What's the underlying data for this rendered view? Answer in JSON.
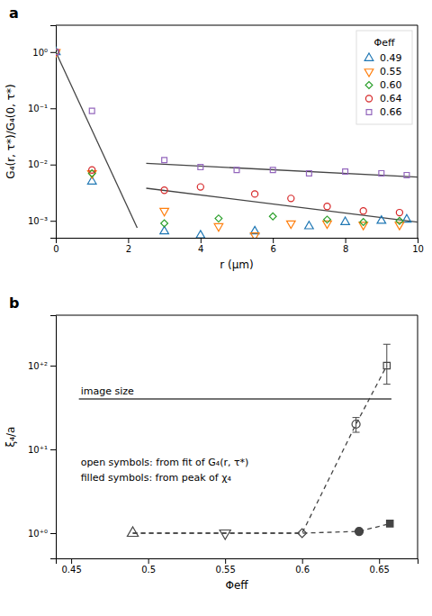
{
  "chart_data": [
    {
      "type": "scatter",
      "title": "a",
      "x_label": "r (μm)",
      "y_label": "G₄(r, τ*)/G₄(0, τ*)",
      "log": "y",
      "grid": false,
      "legend": "top-right",
      "legend_title": "Φeff",
      "xlim": [
        0,
        10
      ],
      "ylim": [
        0.0005,
        3.0
      ],
      "xticks": [
        0,
        2,
        4,
        6,
        8,
        10
      ],
      "yticks": [
        {
          "value": 0.001,
          "label": "10⁻³"
        },
        {
          "value": 0.01,
          "label": "10⁻²"
        },
        {
          "value": 0.1,
          "label": "10⁻¹"
        },
        {
          "value": 1,
          "label": "10⁰"
        }
      ],
      "series": [
        {
          "name": "0.49",
          "type": "scatter",
          "marker": "triangle-up-open",
          "x": [
            0.0,
            1.0,
            3.0,
            4.0,
            5.5,
            7.0,
            8.0,
            9.0,
            9.7
          ],
          "values": [
            1.0,
            0.005,
            0.00065,
            0.00055,
            0.00065,
            0.0008,
            0.00095,
            0.001,
            0.00105
          ]
        },
        {
          "name": "0.55",
          "type": "scatter",
          "marker": "triangle-down-open",
          "x": [
            0.0,
            1.0,
            3.0,
            4.5,
            5.5,
            6.5,
            7.5,
            8.5,
            9.5
          ],
          "values": [
            1.0,
            0.007,
            0.0015,
            0.0008,
            0.00055,
            0.0009,
            0.0009,
            0.00085,
            0.00085
          ]
        },
        {
          "name": "0.60",
          "type": "scatter",
          "marker": "diamond-open",
          "x": [
            0.0,
            1.0,
            3.0,
            4.5,
            6.0,
            7.5,
            8.5,
            9.5
          ],
          "values": [
            1.0,
            0.007,
            0.0009,
            0.0011,
            0.0012,
            0.00105,
            0.00095,
            0.001
          ]
        },
        {
          "name": "0.64",
          "type": "scatter",
          "marker": "circle-open",
          "x": [
            0.0,
            1.0,
            3.0,
            4.0,
            5.5,
            6.5,
            7.5,
            8.5,
            9.5
          ],
          "values": [
            1.0,
            0.008,
            0.0035,
            0.004,
            0.003,
            0.0025,
            0.0018,
            0.0015,
            0.0014
          ]
        },
        {
          "name": "0.66",
          "type": "scatter",
          "marker": "square-open",
          "x": [
            0.0,
            1.0,
            3.0,
            4.0,
            5.0,
            6.0,
            7.0,
            8.0,
            9.0,
            9.7
          ],
          "values": [
            1.0,
            0.09,
            0.012,
            0.009,
            0.008,
            0.008,
            0.007,
            0.0075,
            0.007,
            0.0065
          ]
        },
        {
          "type": "line",
          "line_style": "solid",
          "x": [
            0.0,
            2.25
          ],
          "values": [
            1.0,
            0.00075
          ]
        },
        {
          "type": "line",
          "line_style": "solid",
          "x": [
            2.5,
            10.0
          ],
          "values": [
            0.0105,
            0.006
          ]
        },
        {
          "type": "line",
          "line_style": "solid",
          "x": [
            2.5,
            10.0
          ],
          "values": [
            0.0038,
            0.00095
          ]
        }
      ]
    },
    {
      "type": "scatter",
      "title": "b",
      "x_label": "Φeff",
      "y_label": "ξ₄/a",
      "log": "y",
      "grid": false,
      "xlim": [
        0.44,
        0.675
      ],
      "ylim": [
        0.5,
        400
      ],
      "xticks": [
        0.45,
        0.5,
        0.55,
        0.6,
        0.65
      ],
      "yticks": [
        {
          "value": 1,
          "label": "10⁺⁰"
        },
        {
          "value": 10,
          "label": "10⁺¹"
        },
        {
          "value": 100,
          "label": "10⁺²"
        }
      ],
      "annotations": [
        "image size",
        "open symbols:  from fit of G₄(r, τ*)",
        "filled symbols:  from peak of χ₄"
      ],
      "series": [
        {
          "type": "line",
          "line_style": "solid",
          "x": [
            0.455,
            0.658
          ],
          "values": [
            40,
            40
          ]
        },
        {
          "type": "line",
          "line_style": "dashed",
          "x": [
            0.49,
            0.55,
            0.6,
            0.635,
            0.655
          ],
          "values": [
            1.0,
            1.0,
            1.0,
            20.0,
            100.0
          ]
        },
        {
          "type": "line",
          "line_style": "dashed",
          "x": [
            0.49,
            0.55,
            0.6,
            0.637,
            0.657
          ],
          "values": [
            1.0,
            1.0,
            1.0,
            1.05,
            1.3
          ]
        },
        {
          "type": "scatter",
          "marker": "triangle-up-open",
          "x": [
            0.49
          ],
          "values": [
            1.0
          ]
        },
        {
          "type": "scatter",
          "marker": "triangle-down-open",
          "x": [
            0.55
          ],
          "values": [
            1.0
          ]
        },
        {
          "type": "scatter",
          "marker": "diamond-open",
          "x": [
            0.6
          ],
          "values": [
            1.0
          ]
        },
        {
          "type": "scatter",
          "marker": "circle-open",
          "x": [
            0.635
          ],
          "values": [
            20.0
          ],
          "error_low": [
            4.0
          ],
          "error_high": [
            4.0
          ]
        },
        {
          "type": "scatter",
          "marker": "square-open",
          "x": [
            0.655
          ],
          "values": [
            100.0
          ],
          "error_low": [
            40.0
          ],
          "error_high": [
            80.0
          ]
        },
        {
          "type": "scatter",
          "marker": "circle",
          "x": [
            0.637
          ],
          "values": [
            1.05
          ]
        },
        {
          "type": "scatter",
          "marker": "square",
          "x": [
            0.657
          ],
          "values": [
            1.3
          ]
        }
      ]
    }
  ]
}
